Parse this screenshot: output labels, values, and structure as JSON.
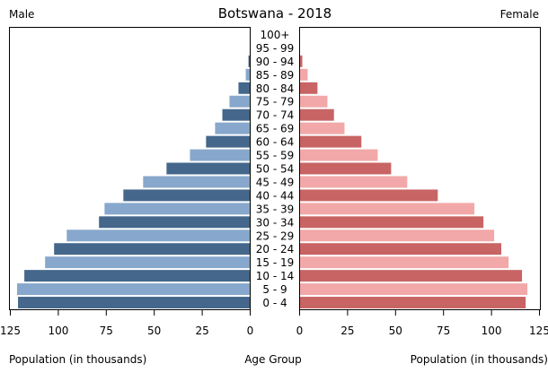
{
  "chart_data": {
    "type": "bar",
    "subtype": "population-pyramid",
    "title": "Botswana - 2018",
    "left_label": "Male",
    "right_label": "Female",
    "xlabel_left": "Population (in thousands)",
    "xlabel_center": "Age Group",
    "xlabel_right": "Population (in thousands)",
    "xlim": [
      0,
      125
    ],
    "ticks": [
      0,
      25,
      50,
      75,
      100,
      125
    ],
    "categories": [
      "0 - 4",
      "5 - 9",
      "10 - 14",
      "15 - 19",
      "20 - 24",
      "25 - 29",
      "30 - 34",
      "35 - 39",
      "40 - 44",
      "45 - 49",
      "50 - 54",
      "55 - 59",
      "60 - 64",
      "65 - 69",
      "70 - 74",
      "75 - 79",
      "80 - 84",
      "85 - 89",
      "90 - 94",
      "95 - 99",
      "100+"
    ],
    "series": [
      {
        "name": "Male",
        "values": [
          121,
          121.5,
          117.7,
          106.9,
          102.2,
          95.6,
          78.8,
          75.9,
          66.1,
          55.8,
          43.6,
          31.4,
          23,
          18.3,
          14.5,
          10.8,
          6.1,
          2.3,
          0.9,
          0.2,
          0.1
        ]
      },
      {
        "name": "Female",
        "values": [
          117.8,
          118.7,
          115.9,
          108.9,
          105.1,
          101.4,
          95.8,
          91.1,
          72,
          56.1,
          47.7,
          40.7,
          32.2,
          23.4,
          17.9,
          14.5,
          9.3,
          4.2,
          1.4,
          0.2,
          0.1
        ]
      }
    ],
    "colors": {
      "male_dark": "#44678b",
      "male_light": "#87a8cc",
      "female_dark": "#c86464",
      "female_light": "#f2a8a8"
    },
    "grid": false
  }
}
